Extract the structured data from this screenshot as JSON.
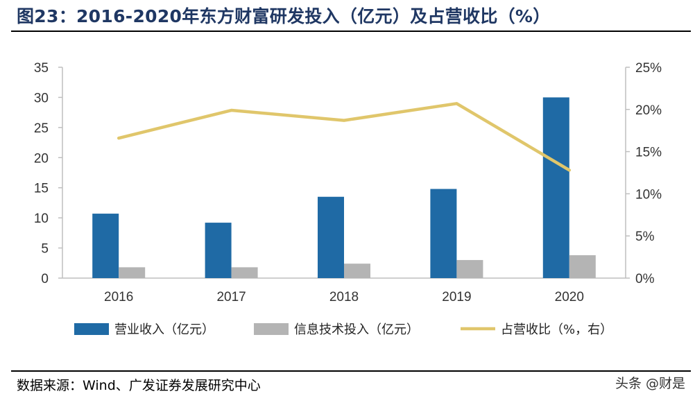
{
  "title": "图23：2016-2020年东方财富研发投入（亿元）及占营收比（%）",
  "source": "数据来源：Wind、广发证券发展研究中心",
  "watermark": "头条 @财是",
  "colors": {
    "title": "#1f3763",
    "revenue_bar": "#1f6aa5",
    "it_bar": "#b4b4b4",
    "ratio_line": "#e0c66b"
  },
  "chart_data": {
    "type": "bar",
    "categories": [
      "2016",
      "2017",
      "2018",
      "2019",
      "2020"
    ],
    "series": [
      {
        "name": "营业收入（亿元）",
        "type": "bar",
        "axis": "left",
        "values": [
          10.7,
          9.2,
          13.5,
          14.8,
          30.0
        ]
      },
      {
        "name": "信息技术投入（亿元）",
        "type": "bar",
        "axis": "left",
        "values": [
          1.8,
          1.8,
          2.4,
          3.0,
          3.8
        ]
      },
      {
        "name": "占营收比（%，右）",
        "type": "line",
        "axis": "right",
        "values": [
          16.6,
          19.9,
          18.7,
          20.7,
          12.8
        ]
      }
    ],
    "ylim_left": [
      0,
      35
    ],
    "yticks_left": [
      "0",
      "5",
      "10",
      "15",
      "20",
      "25",
      "30",
      "35"
    ],
    "ylim_right": [
      0,
      25
    ],
    "yticks_right": [
      "0%",
      "5%",
      "10%",
      "15%",
      "20%",
      "25%"
    ],
    "legend_position": "bottom",
    "grid": false
  }
}
